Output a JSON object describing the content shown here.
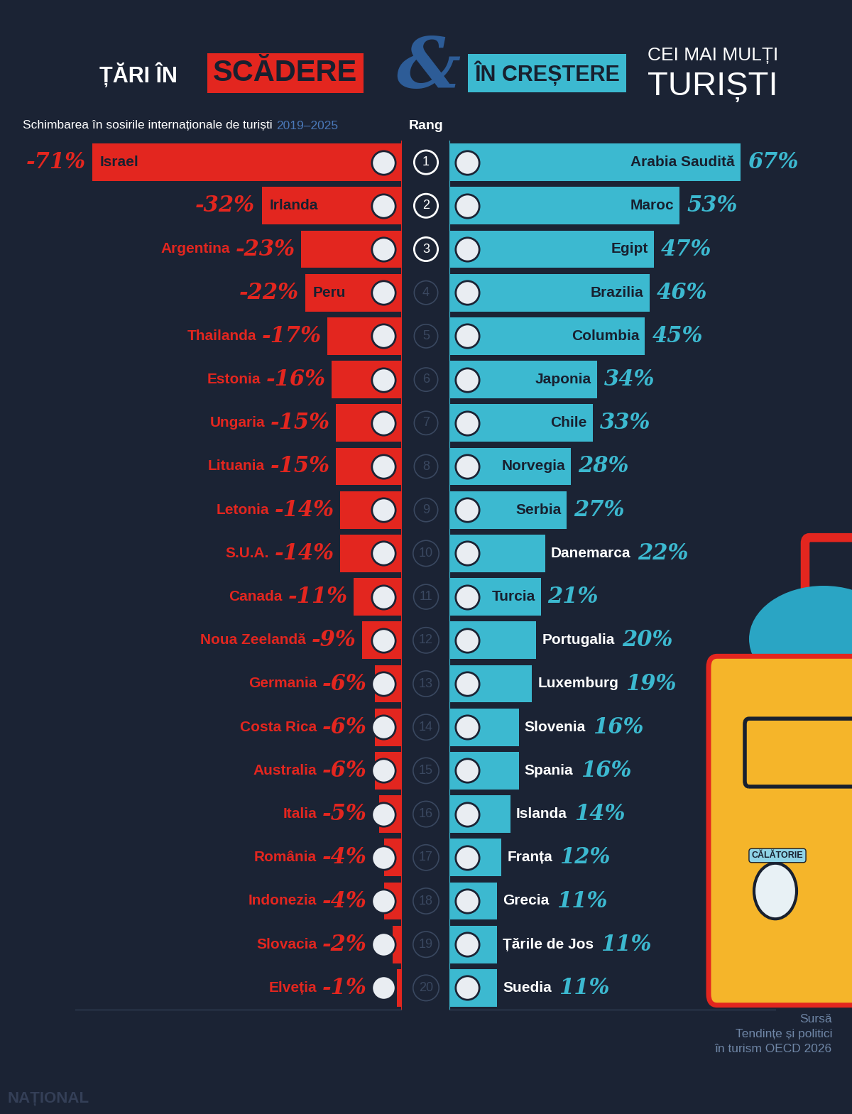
{
  "header": {
    "left": "ȚĂRI ÎN",
    "decline": "SCĂDERE",
    "ampersand": "&",
    "growth": "ÎN CREȘTERE",
    "right_small": "CEI MAI MULȚI",
    "right_big": "TURIȘTI"
  },
  "subtitle": "Schimbarea în sosirile internaționale de turiști",
  "period": "2019–2025",
  "rank_label": "Rang",
  "ranks": [
    1,
    2,
    3,
    4,
    5,
    6,
    7,
    8,
    9,
    10,
    11,
    12,
    13,
    14,
    15,
    16,
    17,
    18,
    19,
    20
  ],
  "source": "Sursă\nTendințe și politici\nîn turism OECD 2026",
  "sticker": "CĂLĂTORIE",
  "watermark": "NAȚIONAL",
  "chart_data": [
    {
      "type": "bar",
      "orientation": "horizontal",
      "color": "#e3261f",
      "data_labels": true,
      "tick_labels": false,
      "xlim": [
        -75,
        0
      ],
      "xticks": [],
      "categories": [
        "Israel",
        "Irlanda",
        "Argentina",
        "Peru",
        "Thailanda",
        "Estonia",
        "Ungaria",
        "Lituania",
        "Letonia",
        "S.U.A.",
        "Canada",
        "Noua Zeelandă",
        "Germania",
        "Costa Rica",
        "Australia",
        "Italia",
        "România",
        "Indonezia",
        "Slovacia",
        "Elveția"
      ],
      "values": [
        -71,
        -32,
        -23,
        -22,
        -17,
        -16,
        -15,
        -15,
        -14,
        -14,
        -11,
        -9,
        -6,
        -6,
        -6,
        -5,
        -4,
        -4,
        -2,
        -1
      ],
      "value_labels": [
        "-71%",
        "-32%",
        "-23%",
        "-22%",
        "-17%",
        "-16%",
        "-15%",
        "-15%",
        "-14%",
        "-14%",
        "-11%",
        "-9%",
        "-6%",
        "-6%",
        "-6%",
        "-5%",
        "-4%",
        "-4%",
        "-2%",
        "-1%"
      ]
    },
    {
      "type": "bar",
      "orientation": "horizontal",
      "color": "#3cb9d0",
      "data_labels": true,
      "tick_labels": false,
      "xlim": [
        0,
        75
      ],
      "xticks": [],
      "categories": [
        "Arabia Saudită",
        "Maroc",
        "Egipt",
        "Brazilia",
        "Columbia",
        "Japonia",
        "Chile",
        "Norvegia",
        "Serbia",
        "Danemarca",
        "Turcia",
        "Portugalia",
        "Luxemburg",
        "Slovenia",
        "Spania",
        "Islanda",
        "Franța",
        "Grecia",
        "Țările de Jos",
        "Suedia"
      ],
      "values": [
        67,
        53,
        47,
        46,
        45,
        34,
        33,
        28,
        27,
        22,
        21,
        20,
        19,
        16,
        16,
        14,
        12,
        11,
        11,
        11
      ],
      "value_labels": [
        "67%",
        "53%",
        "47%",
        "46%",
        "45%",
        "34%",
        "33%",
        "28%",
        "27%",
        "22%",
        "21%",
        "20%",
        "19%",
        "16%",
        "16%",
        "14%",
        "12%",
        "11%",
        "11%",
        "11%"
      ]
    }
  ]
}
